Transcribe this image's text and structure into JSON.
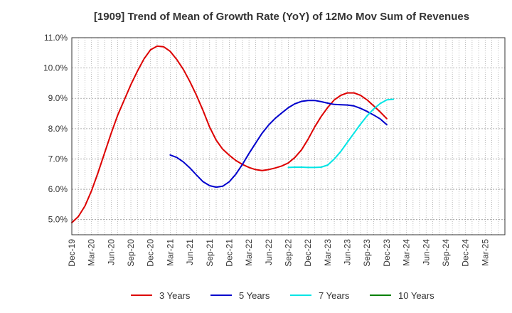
{
  "chart_data": {
    "type": "line",
    "title": "[1909]  Trend of Mean of Growth Rate (YoY) of 12Mo Mov Sum of Revenues",
    "xlabel": "",
    "ylabel": "",
    "ylim": [
      4.5,
      11.0
    ],
    "x_range": [
      0,
      66
    ],
    "grid": true,
    "legend_position": "bottom",
    "x_ticks": [
      {
        "x": 0,
        "label": "Dec-19"
      },
      {
        "x": 3,
        "label": "Mar-20"
      },
      {
        "x": 6,
        "label": "Jun-20"
      },
      {
        "x": 9,
        "label": "Sep-20"
      },
      {
        "x": 12,
        "label": "Dec-20"
      },
      {
        "x": 15,
        "label": "Mar-21"
      },
      {
        "x": 18,
        "label": "Jun-21"
      },
      {
        "x": 21,
        "label": "Sep-21"
      },
      {
        "x": 24,
        "label": "Dec-21"
      },
      {
        "x": 27,
        "label": "Mar-22"
      },
      {
        "x": 30,
        "label": "Jun-22"
      },
      {
        "x": 33,
        "label": "Sep-22"
      },
      {
        "x": 36,
        "label": "Dec-22"
      },
      {
        "x": 39,
        "label": "Mar-23"
      },
      {
        "x": 42,
        "label": "Jun-23"
      },
      {
        "x": 45,
        "label": "Sep-23"
      },
      {
        "x": 48,
        "label": "Dec-23"
      },
      {
        "x": 51,
        "label": "Mar-24"
      },
      {
        "x": 54,
        "label": "Jun-24"
      },
      {
        "x": 57,
        "label": "Sep-24"
      },
      {
        "x": 60,
        "label": "Dec-24"
      },
      {
        "x": 63,
        "label": "Mar-25"
      }
    ],
    "y_ticks": [
      {
        "y": 5.0,
        "label": "5.0%"
      },
      {
        "y": 6.0,
        "label": "6.0%"
      },
      {
        "y": 7.0,
        "label": "7.0%"
      },
      {
        "y": 8.0,
        "label": "8.0%"
      },
      {
        "y": 9.0,
        "label": "9.0%"
      },
      {
        "y": 10.0,
        "label": "10.0%"
      },
      {
        "y": 11.0,
        "label": "11.0%"
      }
    ],
    "series": [
      {
        "name": "3 Years",
        "color": "#dd0000",
        "points": [
          [
            0,
            4.9
          ],
          [
            1,
            5.1
          ],
          [
            2,
            5.45
          ],
          [
            3,
            5.95
          ],
          [
            4,
            6.55
          ],
          [
            5,
            7.2
          ],
          [
            6,
            7.85
          ],
          [
            7,
            8.45
          ],
          [
            8,
            8.95
          ],
          [
            9,
            9.45
          ],
          [
            10,
            9.9
          ],
          [
            11,
            10.3
          ],
          [
            12,
            10.6
          ],
          [
            13,
            10.72
          ],
          [
            14,
            10.7
          ],
          [
            15,
            10.55
          ],
          [
            16,
            10.28
          ],
          [
            17,
            9.95
          ],
          [
            18,
            9.55
          ],
          [
            19,
            9.1
          ],
          [
            20,
            8.6
          ],
          [
            21,
            8.05
          ],
          [
            22,
            7.62
          ],
          [
            23,
            7.32
          ],
          [
            24,
            7.12
          ],
          [
            25,
            6.95
          ],
          [
            26,
            6.82
          ],
          [
            27,
            6.72
          ],
          [
            28,
            6.65
          ],
          [
            29,
            6.62
          ],
          [
            30,
            6.65
          ],
          [
            31,
            6.7
          ],
          [
            32,
            6.77
          ],
          [
            33,
            6.87
          ],
          [
            34,
            7.05
          ],
          [
            35,
            7.3
          ],
          [
            36,
            7.65
          ],
          [
            37,
            8.05
          ],
          [
            38,
            8.4
          ],
          [
            39,
            8.7
          ],
          [
            40,
            8.95
          ],
          [
            41,
            9.1
          ],
          [
            42,
            9.18
          ],
          [
            43,
            9.18
          ],
          [
            44,
            9.1
          ],
          [
            45,
            8.95
          ],
          [
            46,
            8.75
          ],
          [
            47,
            8.55
          ],
          [
            48,
            8.33
          ]
        ]
      },
      {
        "name": "5 Years",
        "color": "#0000cc",
        "points": [
          [
            15,
            7.13
          ],
          [
            16,
            7.05
          ],
          [
            17,
            6.9
          ],
          [
            18,
            6.7
          ],
          [
            19,
            6.47
          ],
          [
            20,
            6.25
          ],
          [
            21,
            6.12
          ],
          [
            22,
            6.07
          ],
          [
            23,
            6.1
          ],
          [
            24,
            6.25
          ],
          [
            25,
            6.5
          ],
          [
            26,
            6.82
          ],
          [
            27,
            7.18
          ],
          [
            28,
            7.52
          ],
          [
            29,
            7.85
          ],
          [
            30,
            8.12
          ],
          [
            31,
            8.34
          ],
          [
            32,
            8.52
          ],
          [
            33,
            8.69
          ],
          [
            34,
            8.82
          ],
          [
            35,
            8.9
          ],
          [
            36,
            8.93
          ],
          [
            37,
            8.93
          ],
          [
            38,
            8.89
          ],
          [
            39,
            8.84
          ],
          [
            40,
            8.8
          ],
          [
            41,
            8.79
          ],
          [
            42,
            8.78
          ],
          [
            43,
            8.75
          ],
          [
            44,
            8.67
          ],
          [
            45,
            8.57
          ],
          [
            46,
            8.45
          ],
          [
            47,
            8.32
          ],
          [
            48,
            8.13
          ]
        ]
      },
      {
        "name": "7 Years",
        "color": "#00e5e5",
        "points": [
          [
            33,
            6.72
          ],
          [
            34,
            6.73
          ],
          [
            35,
            6.73
          ],
          [
            36,
            6.72
          ],
          [
            37,
            6.72
          ],
          [
            38,
            6.73
          ],
          [
            39,
            6.8
          ],
          [
            40,
            7.0
          ],
          [
            41,
            7.25
          ],
          [
            42,
            7.55
          ],
          [
            43,
            7.85
          ],
          [
            44,
            8.15
          ],
          [
            45,
            8.42
          ],
          [
            46,
            8.65
          ],
          [
            47,
            8.83
          ],
          [
            48,
            8.95
          ],
          [
            49,
            8.97
          ]
        ]
      },
      {
        "name": "10 Years",
        "color": "#008000",
        "points": []
      }
    ]
  }
}
